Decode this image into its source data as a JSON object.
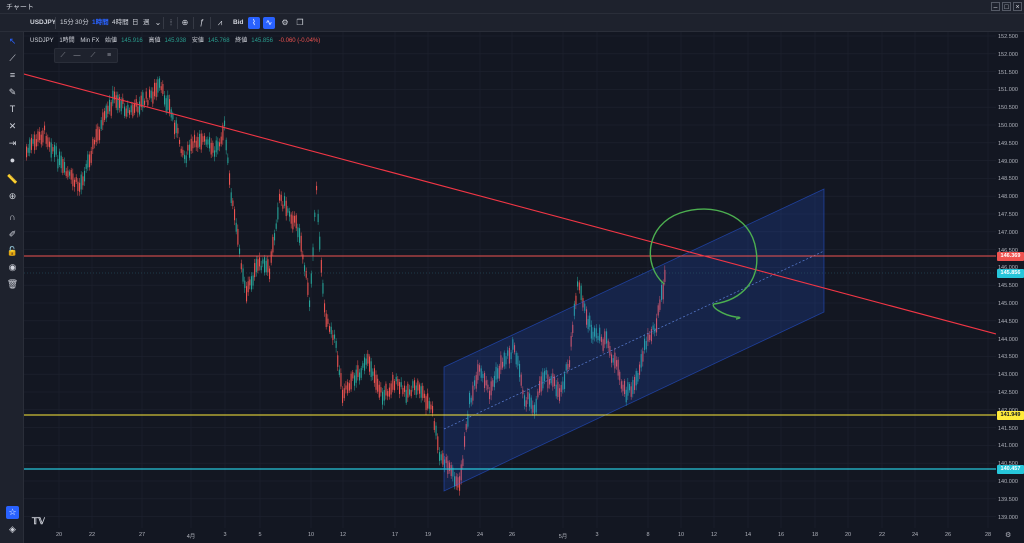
{
  "window": {
    "title": "チャート"
  },
  "toolbar": {
    "symbol": "USDJPY",
    "tf_15": "15分",
    "tf_30": "30分",
    "tf_60": "1時間",
    "tf_240": "4時間",
    "tf_d": "日",
    "tf_w": "週",
    "bid": "Bid"
  },
  "legend": {
    "symbol": "USDJPY",
    "timeframe": "1時間",
    "broker": "Min FX",
    "open_label": "始値",
    "open": "145.916",
    "high_label": "高値",
    "high": "145.938",
    "low_label": "安値",
    "low": "145.768",
    "close_label": "終値",
    "close": "145.856",
    "change": "-0.060 (-0.04%)"
  },
  "price_axis": [
    "152.500",
    "152.000",
    "151.500",
    "151.000",
    "150.500",
    "150.000",
    "149.500",
    "149.000",
    "148.500",
    "148.000",
    "147.500",
    "147.000",
    "146.500",
    "146.000",
    "145.500",
    "145.000",
    "144.500",
    "144.000",
    "143.500",
    "143.000",
    "142.500",
    "142.000",
    "141.500",
    "141.000",
    "140.500",
    "140.000",
    "139.500",
    "139.000"
  ],
  "price_labels": {
    "red": "146.369",
    "current": "145.856",
    "yellow": "141.949",
    "cyan": "140.457"
  },
  "date_axis": [
    "20",
    "22",
    "27",
    "4月",
    "3",
    "5",
    "10",
    "12",
    "17",
    "19",
    "24",
    "26",
    "5月",
    "3",
    "8",
    "10",
    "12",
    "14",
    "16",
    "18",
    "20",
    "22",
    "24",
    "26",
    "28"
  ],
  "colors": {
    "background": "#131722",
    "trendline": "#f23645",
    "red_level": "#ef5350",
    "yellow_level": "#ffeb3b",
    "cyan_level": "#26c6da",
    "channel": "#2962ff",
    "circle": "#4caf50",
    "candle_up": "#26a69a",
    "candle_down": "#ef5350"
  },
  "icons": {
    "left_tools": [
      "cursor-icon",
      "trendline-tool-icon",
      "fib-tool-icon",
      "brush-icon",
      "text-icon",
      "pattern-icon",
      "measure-icon",
      "circle-icon",
      "ruler-icon",
      "zoom-icon",
      "magnet-icon",
      "lock-draw-icon",
      "lock-icon",
      "eye-icon",
      "trash-icon",
      "star-icon",
      "layers-icon"
    ]
  }
}
